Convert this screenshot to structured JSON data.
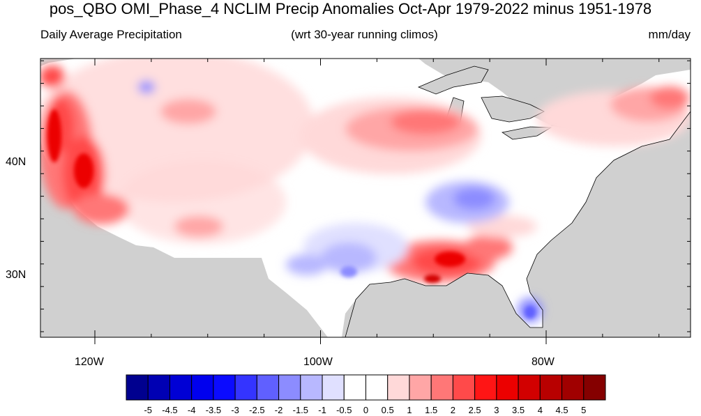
{
  "title": "pos_QBO OMI_Phase_4 NCLIM Precip Anomalies Oct-Apr 1979-2022 minus 1951-1978",
  "subtitle_left": "Daily Average Precipitation",
  "subtitle_center": "(wrt 30-year running climos)",
  "subtitle_right": "mm/day",
  "axes": {
    "lon_labels": [
      "120W",
      "100W",
      "80W"
    ],
    "lat_labels": [
      "40N",
      "30N"
    ]
  },
  "colorbar": {
    "labels": [
      "-5",
      "-4.5",
      "-4",
      "-3.5",
      "-3",
      "-2.5",
      "-2",
      "-1.5",
      "-1",
      "-0.5",
      "0",
      "0.5",
      "1",
      "1.5",
      "2",
      "2.5",
      "3",
      "3.5",
      "4",
      "4.5",
      "5"
    ],
    "colors": [
      "#00008f",
      "#0000b3",
      "#0000d5",
      "#0000ee",
      "#0b0bff",
      "#3434ff",
      "#6060ff",
      "#8c8cff",
      "#b8b8ff",
      "#e0e0ff",
      "#ffffff",
      "#ffffff",
      "#ffd9d9",
      "#ffa6a6",
      "#ff7777",
      "#ff4a4a",
      "#ff1515",
      "#ec0000",
      "#d20000",
      "#b80000",
      "#a00000",
      "#850000"
    ]
  },
  "colors": {
    "land_no_data": "#d3d3d3",
    "missing_gray": "#cccccc"
  }
}
